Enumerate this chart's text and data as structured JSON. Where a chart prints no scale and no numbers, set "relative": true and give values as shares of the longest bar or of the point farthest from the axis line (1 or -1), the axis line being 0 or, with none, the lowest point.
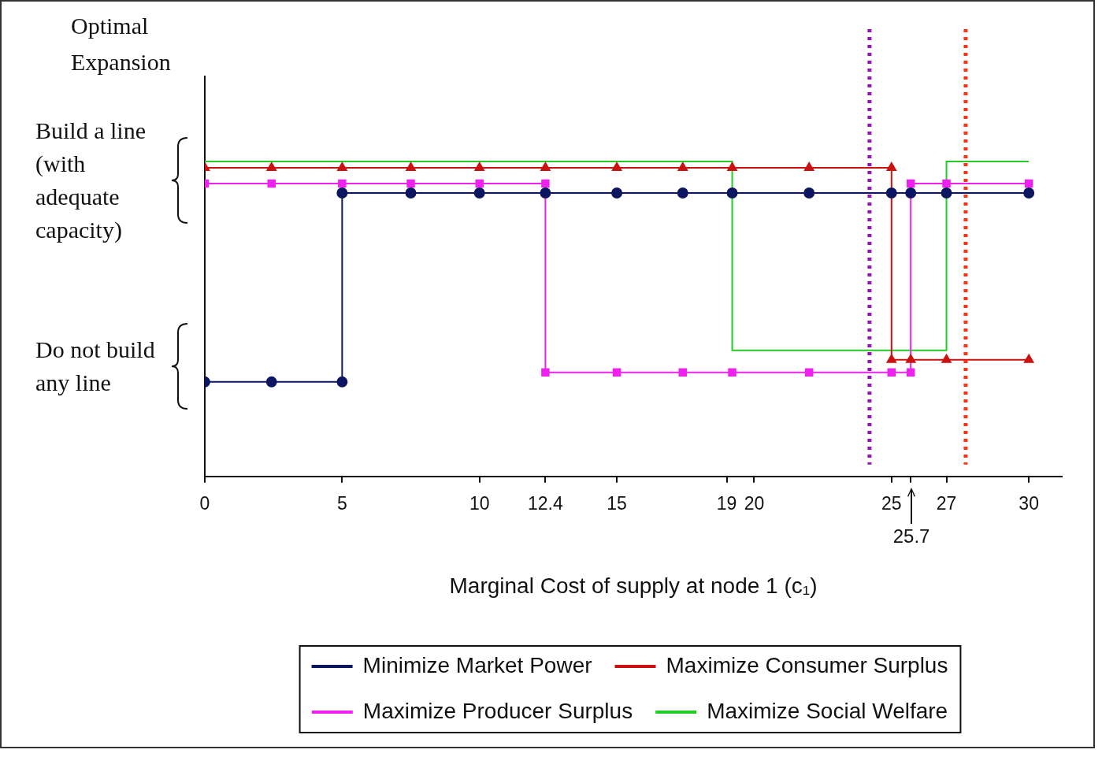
{
  "chart_data": {
    "type": "line",
    "relative": true,
    "xlabel": "Marginal Cost of supply at node 1 (c₁)",
    "ylabel": "Optimal Expansion",
    "xlim": [
      0,
      31.2
    ],
    "xticks": [
      0,
      5,
      10,
      12.4,
      15,
      19,
      20,
      25,
      {
        "value": 25.7,
        "label": null
      },
      27,
      30
    ],
    "series": [
      {
        "name": "Minimize Market Power",
        "color": "#0d1660",
        "marker": "circle",
        "x": [
          0,
          2.43,
          5,
          5,
          7.5,
          10,
          12.4,
          15,
          17.4,
          19.2,
          22,
          25,
          25.7,
          27,
          30
        ],
        "values": [
          0.3,
          0.3,
          0.3,
          0.9,
          0.9,
          0.9,
          0.9,
          0.9,
          0.9,
          0.9,
          0.9,
          0.9,
          0.9,
          0.9,
          0.9
        ]
      },
      {
        "name": "Maximize Consumer Surplus",
        "color": "#cc1111",
        "marker": "triangle",
        "x": [
          0,
          2.43,
          5,
          7.5,
          10,
          12.4,
          15,
          17.4,
          19.2,
          22,
          25,
          25,
          25.7,
          27,
          30
        ],
        "values": [
          0.98,
          0.98,
          0.98,
          0.98,
          0.98,
          0.98,
          0.98,
          0.98,
          0.98,
          0.98,
          0.98,
          0.37,
          0.37,
          0.37,
          0.37
        ]
      },
      {
        "name": "Maximize Producer Surplus",
        "color": "#ee22ee",
        "marker": "square",
        "x": [
          0,
          2.43,
          5,
          7.5,
          10,
          12.4,
          12.4,
          15,
          17.4,
          19.2,
          22,
          25,
          25.7,
          25.7,
          27,
          30
        ],
        "values": [
          0.93,
          0.93,
          0.93,
          0.93,
          0.93,
          0.93,
          0.33,
          0.33,
          0.33,
          0.33,
          0.33,
          0.33,
          0.33,
          0.93,
          0.93,
          0.93
        ]
      },
      {
        "name": "Maximize Social Welfare",
        "color": "#22cc22",
        "marker": "none",
        "x": [
          0,
          19.2,
          19.2,
          27,
          27,
          30
        ],
        "values": [
          1,
          1,
          0.4,
          0.4,
          1,
          1
        ]
      }
    ],
    "ref_lines": [
      {
        "axis": "x",
        "value": 24.2,
        "color": "#9911bb",
        "line_style": "dotted"
      },
      {
        "axis": "x",
        "value": 27.7,
        "color": "#ff3311",
        "line_style": "dotted"
      }
    ],
    "annotations": [
      "Build a line (with adequate capacity)",
      "Do not build any line",
      "25.7"
    ],
    "legend": "bottom",
    "grid": false
  }
}
